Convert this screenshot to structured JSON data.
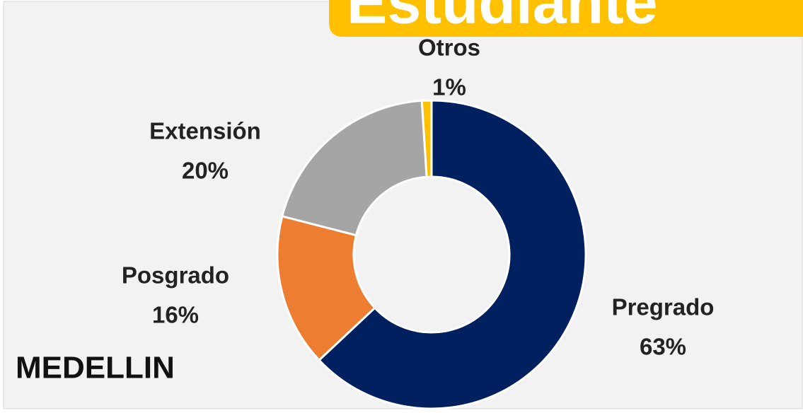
{
  "chart_data": {
    "type": "donut",
    "title": "Estudiante",
    "subtitle": "MEDELLIN",
    "categories": [
      "Pregrado",
      "Posgrado",
      "Extensión",
      "Otros"
    ],
    "values": [
      63,
      16,
      20,
      1
    ],
    "value_labels": [
      "63%",
      "16%",
      "20%",
      "1%"
    ],
    "colors": [
      "#002060",
      "#ed7d31",
      "#a5a5a5",
      "#ffc000"
    ]
  }
}
